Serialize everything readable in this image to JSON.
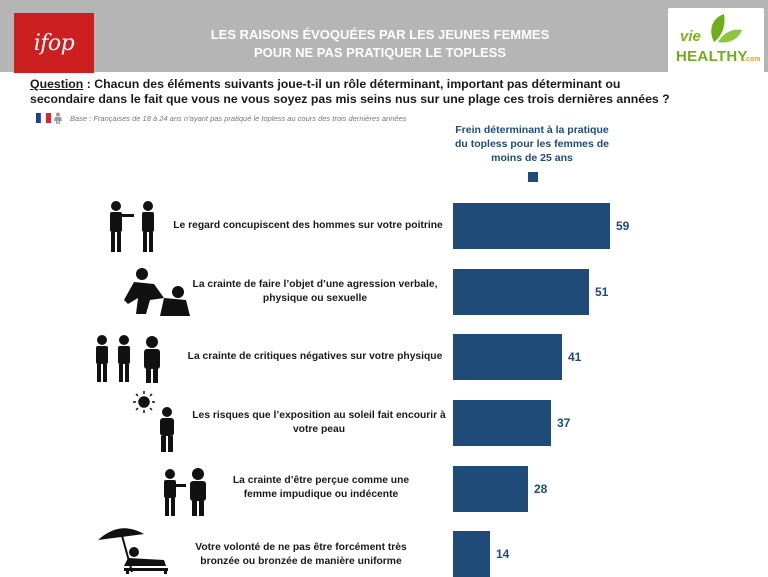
{
  "header": {
    "logo_text": "ifop",
    "title_line1": "LES RAISONS ÉVOQUÉES PAR LES JEUNES FEMMES",
    "title_line2": "POUR NE PAS PRATIQUER LE TOPLESS",
    "partner_logo": {
      "vie": "vie",
      "healthy": "HEALTHY",
      "com": ".com"
    }
  },
  "question": {
    "label": "Question",
    "text": " : Chacun des éléments suivants joue-t-il un rôle déterminant, important pas déterminant ou secondaire dans le fait que vous ne vous soyez pas mis seins nus sur une plage ces trois dernières années ?"
  },
  "base": "Base : Françaises de 18 à 24 ans n’ayant pas pratiqué le topless au cours des trois dernières années",
  "colors": {
    "bar": "#1f4b78",
    "header": "#b5b5b5",
    "logo": "#cc1f1f"
  },
  "chart_data": {
    "type": "bar",
    "orientation": "horizontal",
    "title": "",
    "xlim": [
      0,
      59
    ],
    "categories": [
      "Le regard concupiscent des hommes sur votre poitrine",
      "La crainte de faire l’objet d’une agression verbale, physique ou sexuelle",
      "La crainte de critiques négatives sur votre physique",
      "Les risques que l’exposition au soleil fait encourir à votre peau",
      "La crainte d’être perçue comme une femme impudique ou indécente",
      "Votre volonté de ne pas être forcément très bronzée ou bronzée de manière uniforme"
    ],
    "series": [
      {
        "name": "Frein déterminant à la pratique du topless pour les femmes de moins de 25 ans",
        "values": [
          59,
          51,
          41,
          37,
          28,
          14
        ]
      }
    ],
    "data_labels": [
      "59",
      "51",
      "41",
      "37",
      "28",
      "14"
    ],
    "legend": "top"
  },
  "icons": [
    "men-staring-icon",
    "aggression-icon",
    "criticism-icon",
    "sun-icon",
    "judging-icon",
    "sunbathing-icon"
  ]
}
